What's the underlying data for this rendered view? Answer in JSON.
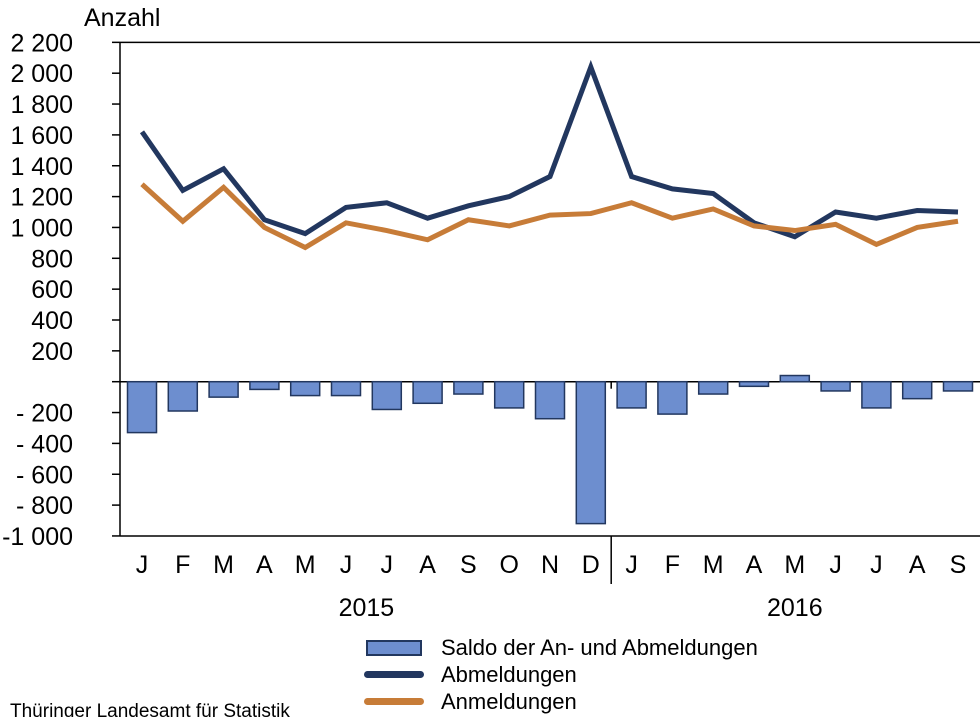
{
  "footer": "Thüringer Landesamt für Statistik",
  "colors": {
    "saldo_fill": "#6D8ECF",
    "saldo_border": "#22375F",
    "abmeldungen": "#22375F",
    "anmeldungen": "#C77C38",
    "axis": "#000000"
  },
  "chart_data": {
    "type": "bar",
    "subtype": "combo-bar-line",
    "y_axis": {
      "title": "Anzahl",
      "ylim": [
        -1000,
        2200
      ],
      "step": 200,
      "grid": false,
      "ticks": [
        {
          "value": 2200,
          "label": "2 200"
        },
        {
          "value": 2000,
          "label": "2 000"
        },
        {
          "value": 1800,
          "label": "1 800"
        },
        {
          "value": 1600,
          "label": "1 600"
        },
        {
          "value": 1400,
          "label": "1 400"
        },
        {
          "value": 1200,
          "label": "1 200"
        },
        {
          "value": 1000,
          "label": "1 000"
        },
        {
          "value": 800,
          "label": "800"
        },
        {
          "value": 600,
          "label": "600"
        },
        {
          "value": 400,
          "label": "400"
        },
        {
          "value": 200,
          "label": "200"
        },
        {
          "value": 0,
          "label": ""
        },
        {
          "value": -200,
          "label": "- 200"
        },
        {
          "value": -400,
          "label": "- 400"
        },
        {
          "value": -600,
          "label": "- 600"
        },
        {
          "value": -800,
          "label": "- 800"
        },
        {
          "value": -1000,
          "label": "-1 000"
        }
      ]
    },
    "x_axis": {
      "categories": [
        "J",
        "F",
        "M",
        "A",
        "M",
        "J",
        "J",
        "A",
        "S",
        "O",
        "N",
        "D",
        "J",
        "F",
        "M",
        "A",
        "M",
        "J",
        "J",
        "A",
        "S"
      ],
      "years": [
        {
          "label": "2015",
          "center_index": 5.5
        },
        {
          "label": "2016",
          "center_index": 16
        }
      ],
      "year_separator_between": [
        11,
        12
      ]
    },
    "series": [
      {
        "name": "Saldo der An- und Abmeldungen",
        "type": "bar",
        "values": [
          -330,
          -190,
          -100,
          -50,
          -90,
          -90,
          -180,
          -140,
          -80,
          -170,
          -240,
          -920,
          -170,
          -210,
          -80,
          -30,
          40,
          -60,
          -170,
          -110,
          -60
        ]
      },
      {
        "name": "Abmeldungen",
        "type": "line",
        "values": [
          1620,
          1240,
          1380,
          1050,
          960,
          1130,
          1160,
          1060,
          1140,
          1200,
          1330,
          2040,
          1330,
          1250,
          1220,
          1030,
          940,
          1100,
          1060,
          1110,
          1100
        ]
      },
      {
        "name": "Anmeldungen",
        "type": "line",
        "values": [
          1280,
          1040,
          1260,
          1000,
          870,
          1030,
          980,
          920,
          1050,
          1010,
          1080,
          1090,
          1160,
          1060,
          1120,
          1010,
          980,
          1020,
          890,
          1000,
          1040
        ]
      }
    ],
    "legend": {
      "position": "bottom",
      "entries": [
        {
          "label": "Saldo der An- und Abmeldungen",
          "swatch": "bar"
        },
        {
          "label": "Abmeldungen",
          "swatch": "line"
        },
        {
          "label": "Anmeldungen",
          "swatch": "line"
        }
      ]
    }
  }
}
